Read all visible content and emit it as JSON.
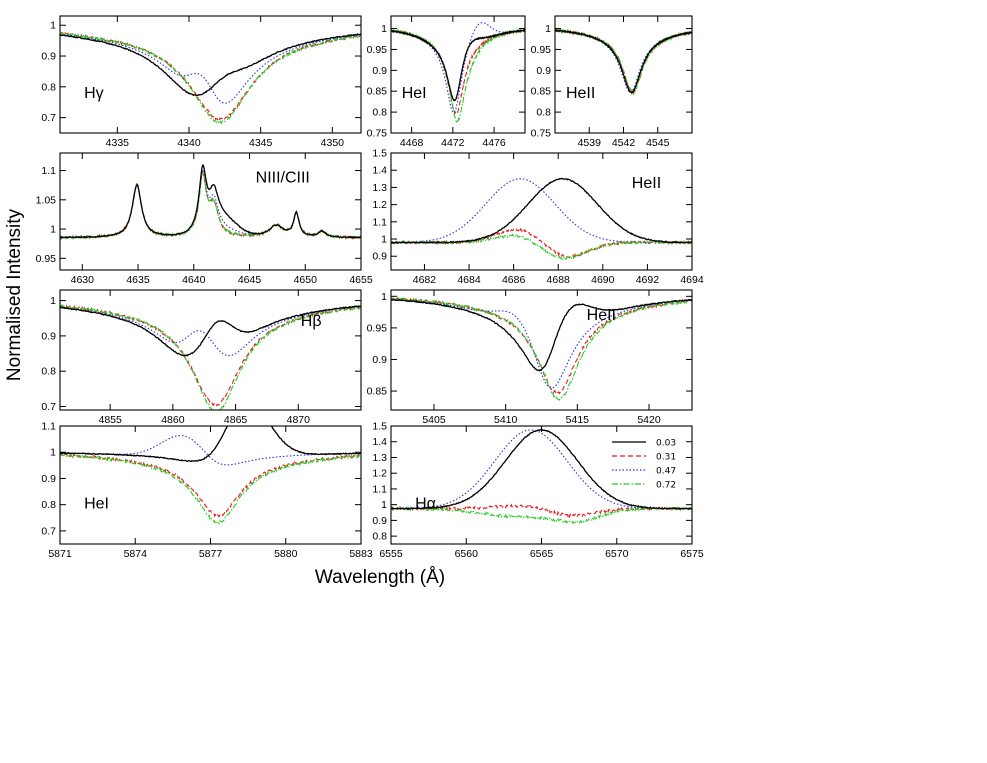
{
  "figure": {
    "xlabel": "Wavelength (Å)",
    "ylabel": "Normalised Intensity"
  },
  "legend": [
    {
      "label": "0.03",
      "color": "#000000",
      "dash": "solid"
    },
    {
      "label": "0.31",
      "color": "#e8191c",
      "dash": "dashed"
    },
    {
      "label": "0.47",
      "color": "#2233dd",
      "dash": "dotted"
    },
    {
      "label": "0.72",
      "color": "#22cc22",
      "dash": "dashdot"
    }
  ],
  "chart_data": [
    {
      "type": "line",
      "label": "Hγ",
      "label_pos": "left",
      "xlim": [
        4331,
        4352
      ],
      "ylim": [
        0.65,
        1.03
      ],
      "xticks": [
        4335,
        4340,
        4345,
        4350
      ],
      "yticks": [
        0.7,
        0.8,
        0.9,
        1
      ],
      "profile": {
        "kind": "absorption",
        "center": 4342.2,
        "width": 4.8,
        "depth": 0.3
      },
      "series": [
        {
          "legend": "0.03",
          "emission": {
            "center": 4341.8,
            "amp": 0.1,
            "width": 1.3
          },
          "shift": -1.0
        },
        {
          "legend": "0.31",
          "emission": {
            "center": 4341.8,
            "amp": 0.0,
            "width": 1.3
          },
          "shift": 0
        },
        {
          "legend": "0.47",
          "emission": {
            "center": 4341.0,
            "amp": 0.12,
            "width": 0.9
          },
          "shift": -0.5
        },
        {
          "legend": "0.72",
          "emission": {
            "center": 4341.8,
            "amp": -0.01,
            "width": 1.3
          },
          "shift": 0
        }
      ]
    },
    {
      "type": "line",
      "label": "HeI",
      "label_pos": "left",
      "xlim": [
        4466,
        4479
      ],
      "ylim": [
        0.75,
        1.03
      ],
      "xticks": [
        4468,
        4472,
        4476
      ],
      "yticks": [
        0.75,
        0.8,
        0.85,
        0.9,
        0.95,
        1
      ],
      "profile": {
        "kind": "absorption",
        "center": 4472.3,
        "width": 1.7,
        "depth": 0.2
      },
      "series": [
        {
          "legend": "0.03",
          "emission": {
            "center": 4473.0,
            "amp": 0.04,
            "width": 1.2
          },
          "shift": -0.1
        },
        {
          "legend": "0.31",
          "emission": {
            "center": 4473.0,
            "amp": 0.0,
            "width": 1.2
          },
          "shift": 0
        },
        {
          "legend": "0.47",
          "emission": {
            "center": 4474.5,
            "amp": 0.05,
            "width": 1.0
          },
          "shift": -0.2
        },
        {
          "legend": "0.72",
          "emission": {
            "center": 4473.0,
            "amp": -0.02,
            "width": 1.2
          },
          "shift": 0.1
        }
      ]
    },
    {
      "type": "line",
      "label": "HeII",
      "label_pos": "left",
      "xlim": [
        4536,
        4548
      ],
      "ylim": [
        0.75,
        1.03
      ],
      "xticks": [
        4539,
        4542,
        4545
      ],
      "yticks": [
        0.75,
        0.8,
        0.85,
        0.9,
        0.95,
        1
      ],
      "profile": {
        "kind": "absorption",
        "center": 4542.7,
        "width": 1.9,
        "depth": 0.15
      },
      "series": [
        {
          "legend": "0.03",
          "emission": {
            "center": 4543.0,
            "amp": 0.0,
            "width": 1.0
          },
          "shift": 0
        },
        {
          "legend": "0.31",
          "emission": {
            "center": 4543.0,
            "amp": 0.0,
            "width": 1.0
          },
          "shift": 0.1
        },
        {
          "legend": "0.47",
          "emission": {
            "center": 4543.0,
            "amp": 0.0,
            "width": 1.0
          },
          "shift": -0.1
        },
        {
          "legend": "0.72",
          "emission": {
            "center": 4543.0,
            "amp": 0.0,
            "width": 1.0
          },
          "shift": 0.1
        }
      ]
    },
    {
      "type": "line",
      "label": "NIII/CIII",
      "label_pos": "center",
      "xlim": [
        4628,
        4655
      ],
      "ylim": [
        0.93,
        1.13
      ],
      "xticks": [
        4630,
        4635,
        4640,
        4645,
        4650,
        4655
      ],
      "yticks": [
        0.95,
        1,
        1.05,
        1.1
      ],
      "profile": {
        "kind": "multi",
        "base": 0.985,
        "peaks": [
          [
            4634.9,
            0.09,
            0.5
          ],
          [
            4640.8,
            0.1,
            0.4
          ],
          [
            4641.8,
            0.05,
            0.5
          ],
          [
            4647.4,
            0.02,
            0.8
          ],
          [
            4649.2,
            0.04,
            0.3
          ],
          [
            4651.5,
            0.01,
            0.4
          ]
        ]
      },
      "series": [
        {
          "legend": "0.03",
          "emission": {
            "center": 4642.5,
            "amp": 0.03,
            "width": 1.3
          },
          "shift": 0
        },
        {
          "legend": "0.31",
          "emission": {
            "center": 4642.5,
            "amp": 0.0,
            "width": 1.3
          },
          "shift": 0
        },
        {
          "legend": "0.47",
          "emission": {
            "center": 4642.5,
            "amp": 0.01,
            "width": 1.3
          },
          "shift": 0
        },
        {
          "legend": "0.72",
          "emission": {
            "center": 4642.5,
            "amp": 0.0,
            "width": 1.3
          },
          "shift": 0
        }
      ]
    },
    {
      "type": "line",
      "label": "HeII",
      "label_pos": "right",
      "xlim": [
        4680.5,
        4694
      ],
      "ylim": [
        0.82,
        1.5
      ],
      "xticks": [
        4682,
        4684,
        4686,
        4688,
        4690,
        4692,
        4694
      ],
      "yticks": [
        0.9,
        1,
        1.1,
        1.2,
        1.3,
        1.4,
        1.5
      ],
      "profile": {
        "kind": "emission_only",
        "base": 0.98
      },
      "series": [
        {
          "legend": "0.03",
          "emission": {
            "center": 4688.2,
            "amp": 0.37,
            "width": 1.55
          },
          "absorb": {
            "center": 4686.5,
            "amp": 0.0,
            "width": 1.0
          }
        },
        {
          "legend": "0.31",
          "emission": {
            "center": 4686.3,
            "amp": 0.085,
            "width": 1.0
          },
          "absorb": {
            "center": 4688.3,
            "amp": 0.09,
            "width": 1.0
          }
        },
        {
          "legend": "0.47",
          "emission": {
            "center": 4686.3,
            "amp": 0.37,
            "width": 1.55
          },
          "absorb": {
            "center": 4688.3,
            "amp": 0.0,
            "width": 1.0
          }
        },
        {
          "legend": "0.72",
          "emission": {
            "center": 4686.3,
            "amp": 0.05,
            "width": 1.0
          },
          "absorb": {
            "center": 4688.2,
            "amp": 0.1,
            "width": 1.0
          }
        }
      ]
    },
    {
      "type": "line",
      "label": "Hβ",
      "label_pos": "right",
      "xlim": [
        4851,
        4875
      ],
      "ylim": [
        0.69,
        1.03
      ],
      "xticks": [
        4855,
        4860,
        4865,
        4870
      ],
      "yticks": [
        0.7,
        0.8,
        0.9,
        1
      ],
      "profile": {
        "kind": "absorption",
        "center": 4863.4,
        "width": 4.3,
        "depth": 0.29
      },
      "series": [
        {
          "legend": "0.03",
          "emission": {
            "center": 4863.0,
            "amp": 0.2,
            "width": 1.4
          },
          "shift": -1.0
        },
        {
          "legend": "0.31",
          "emission": {
            "center": 4863.0,
            "amp": 0.0,
            "width": 1.4
          },
          "shift": 0
        },
        {
          "legend": "0.47",
          "emission": {
            "center": 4862.5,
            "amp": 0.2,
            "width": 1.2
          },
          "shift": -0.6
        },
        {
          "legend": "0.72",
          "emission": {
            "center": 4863.0,
            "amp": -0.02,
            "width": 1.4
          },
          "shift": 0.1
        }
      ]
    },
    {
      "type": "line",
      "label": "HeII",
      "label_pos": "center",
      "xlim": [
        5402,
        5423
      ],
      "ylim": [
        0.82,
        1.01
      ],
      "xticks": [
        5405,
        5410,
        5415,
        5420
      ],
      "yticks": [
        0.85,
        0.9,
        0.95,
        1
      ],
      "profile": {
        "kind": "absorption",
        "center": 5413.6,
        "width": 3.1,
        "depth": 0.15
      },
      "series": [
        {
          "legend": "0.03",
          "emission": {
            "center": 5414.0,
            "amp": 0.06,
            "width": 1.5
          },
          "shift": -1.0
        },
        {
          "legend": "0.31",
          "emission": {
            "center": 5414.0,
            "amp": 0.0,
            "width": 1.5
          },
          "shift": 0
        },
        {
          "legend": "0.47",
          "emission": {
            "center": 5411.0,
            "amp": 0.03,
            "width": 1.3
          },
          "shift": -0.5
        },
        {
          "legend": "0.72",
          "emission": {
            "center": 5414.0,
            "amp": -0.01,
            "width": 1.5
          },
          "shift": 0.1
        }
      ]
    },
    {
      "type": "line",
      "label": "HeI",
      "label_pos": "left",
      "xlim": [
        5871,
        5883
      ],
      "ylim": [
        0.65,
        1.1
      ],
      "xticks": [
        5871,
        5874,
        5877,
        5880,
        5883
      ],
      "yticks": [
        0.7,
        0.8,
        0.9,
        1,
        1.1
      ],
      "profile": {
        "kind": "absorption",
        "center": 5877.2,
        "width": 2.0,
        "depth": 0.25
      },
      "series": [
        {
          "legend": "0.03",
          "emission": {
            "center": 5878.4,
            "amp": 0.23,
            "width": 0.9
          },
          "shift": 0,
          "depth_scale": 0.3
        },
        {
          "legend": "0.31",
          "emission": {
            "center": 5878.4,
            "amp": 0.0,
            "width": 0.9
          },
          "shift": 0.1,
          "depth_scale": 0.95
        },
        {
          "legend": "0.47",
          "emission": {
            "center": 5876.0,
            "amp": 0.1,
            "width": 0.9
          },
          "shift": 0,
          "depth_scale": 0.3
        },
        {
          "legend": "0.72",
          "emission": {
            "center": 5878.4,
            "amp": 0.0,
            "width": 0.9
          },
          "shift": 0.1,
          "depth_scale": 1.05
        }
      ]
    },
    {
      "type": "line",
      "label": "Hα",
      "label_pos": "left",
      "xlim": [
        6555,
        6575
      ],
      "ylim": [
        0.75,
        1.5
      ],
      "xticks": [
        6555,
        6560,
        6565,
        6570,
        6575
      ],
      "yticks": [
        0.8,
        0.9,
        1,
        1.1,
        1.2,
        1.3,
        1.4,
        1.5
      ],
      "profile": {
        "kind": "emission_only",
        "base": 0.975
      },
      "series": [
        {
          "legend": "0.03",
          "emission": {
            "center": 6565.0,
            "amp": 0.5,
            "width": 2.4
          },
          "absorb": {
            "center": 6567.0,
            "amp": 0.0,
            "width": 1.5
          }
        },
        {
          "legend": "0.31",
          "emission": {
            "center": 6564.0,
            "amp": 0.02,
            "width": 2.0
          },
          "absorb": {
            "center": 6567.0,
            "amp": 0.05,
            "width": 1.5
          }
        },
        {
          "legend": "0.47",
          "emission": {
            "center": 6564.3,
            "amp": 0.5,
            "width": 2.4
          },
          "absorb": {
            "center": 6567.0,
            "amp": 0.0,
            "width": 1.5
          }
        },
        {
          "legend": "0.72",
          "emission": {
            "center": 6563.5,
            "amp": -0.05,
            "width": 2.5
          },
          "absorb": {
            "center": 6567.5,
            "amp": 0.07,
            "width": 1.5
          }
        }
      ]
    }
  ]
}
